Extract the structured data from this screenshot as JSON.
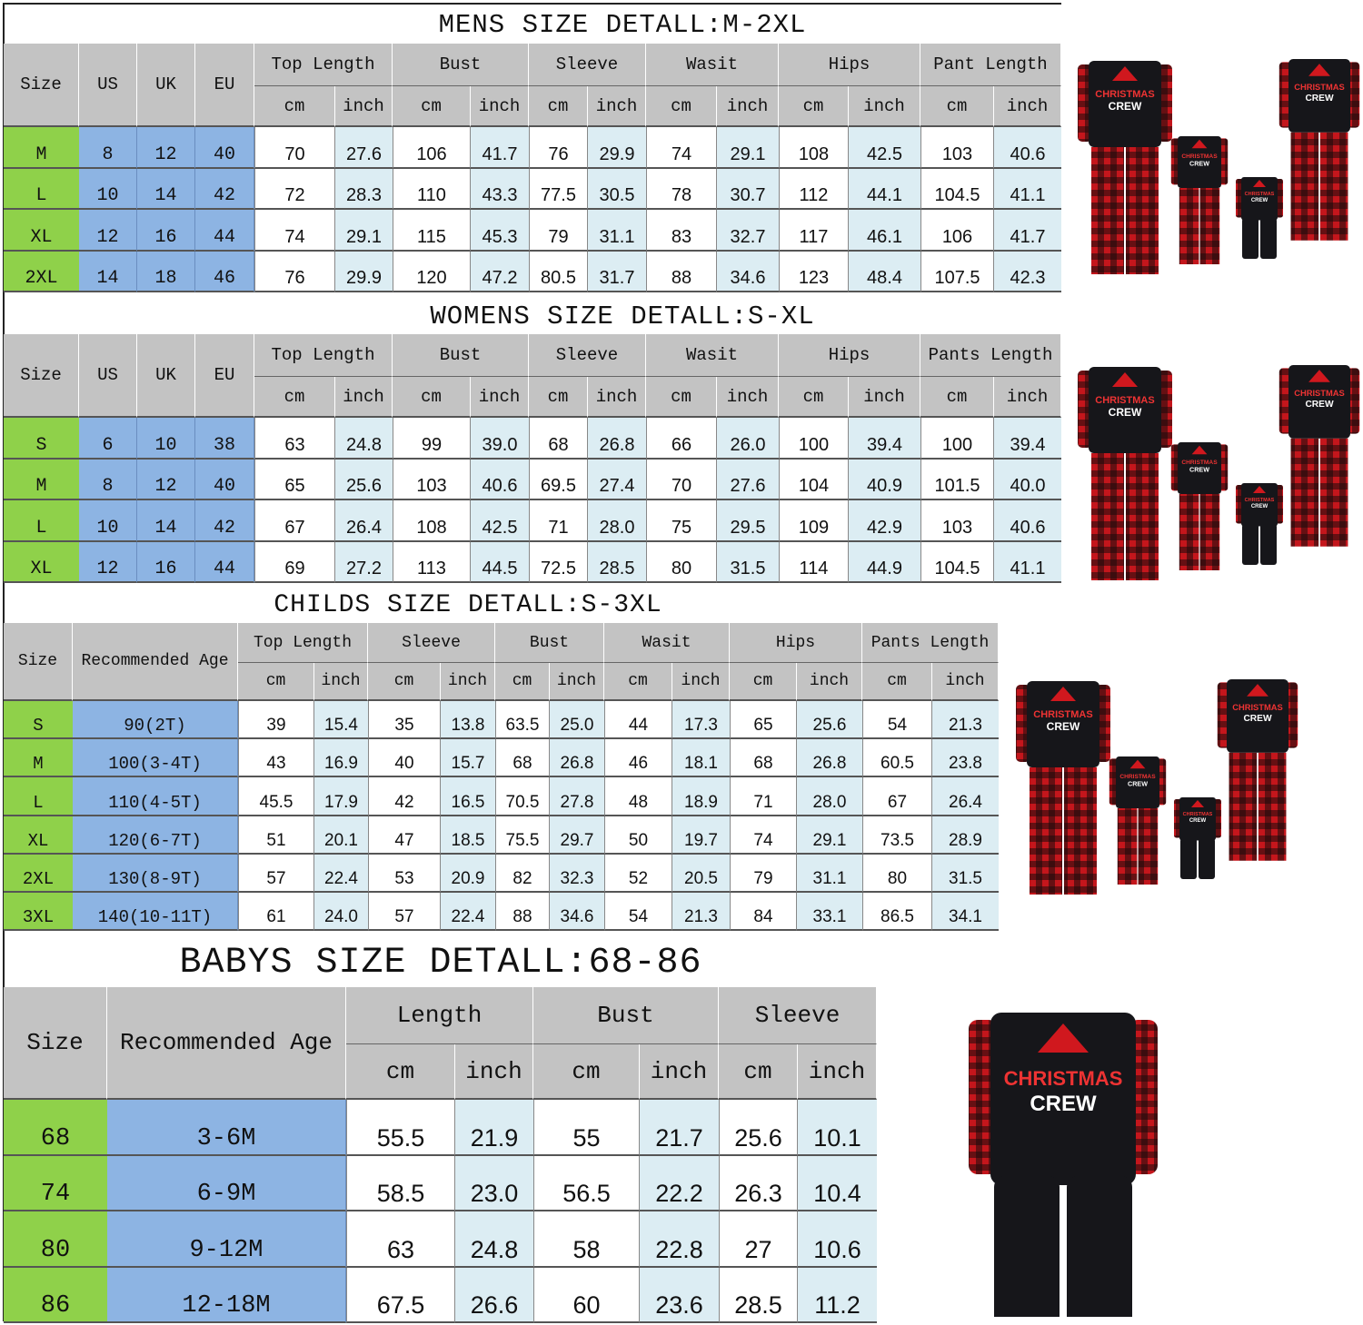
{
  "sections": [
    {
      "title": "MENS SIZE DETALL:M-2XL",
      "left_headers": [
        "Size",
        "US",
        "UK",
        "EU"
      ],
      "groups": [
        {
          "label": "Top Length",
          "units": [
            "cm",
            "inch"
          ]
        },
        {
          "label": "Bust",
          "units": [
            "cm",
            "inch"
          ]
        },
        {
          "label": "Sleeve",
          "units": [
            "cm",
            "inch"
          ]
        },
        {
          "label": "Wasit",
          "units": [
            "cm",
            "inch"
          ]
        },
        {
          "label": "Hips",
          "units": [
            "cm",
            "inch"
          ]
        },
        {
          "label": "Pant Length",
          "units": [
            "cm",
            "inch"
          ]
        }
      ],
      "rows": [
        [
          "M",
          "8",
          "12",
          "40",
          "70",
          "27.6",
          "106",
          "41.7",
          "76",
          "29.9",
          "74",
          "29.1",
          "108",
          "42.5",
          "103",
          "40.6"
        ],
        [
          "L",
          "10",
          "14",
          "42",
          "72",
          "28.3",
          "110",
          "43.3",
          "77.5",
          "30.5",
          "78",
          "30.7",
          "112",
          "44.1",
          "104.5",
          "41.1"
        ],
        [
          "XL",
          "12",
          "16",
          "44",
          "74",
          "29.1",
          "115",
          "45.3",
          "79",
          "31.1",
          "83",
          "32.7",
          "117",
          "46.1",
          "106",
          "41.7"
        ],
        [
          "2XL",
          "14",
          "18",
          "46",
          "76",
          "29.9",
          "120",
          "47.2",
          "80.5",
          "31.7",
          "88",
          "34.6",
          "123",
          "48.4",
          "107.5",
          "42.3"
        ]
      ]
    },
    {
      "title": "WOMENS SIZE DETALL:S-XL",
      "left_headers": [
        "Size",
        "US",
        "UK",
        "EU"
      ],
      "groups": [
        {
          "label": "Top Length",
          "units": [
            "cm",
            "inch"
          ]
        },
        {
          "label": "Bust",
          "units": [
            "cm",
            "inch"
          ]
        },
        {
          "label": "Sleeve",
          "units": [
            "cm",
            "inch"
          ]
        },
        {
          "label": "Wasit",
          "units": [
            "cm",
            "inch"
          ]
        },
        {
          "label": "Hips",
          "units": [
            "cm",
            "inch"
          ]
        },
        {
          "label": "Pants Length",
          "units": [
            "cm",
            "inch"
          ]
        }
      ],
      "rows": [
        [
          "S",
          "6",
          "10",
          "38",
          "63",
          "24.8",
          "99",
          "39.0",
          "68",
          "26.8",
          "66",
          "26.0",
          "100",
          "39.4",
          "100",
          "39.4"
        ],
        [
          "M",
          "8",
          "12",
          "40",
          "65",
          "25.6",
          "103",
          "40.6",
          "69.5",
          "27.4",
          "70",
          "27.6",
          "104",
          "40.9",
          "101.5",
          "40.0"
        ],
        [
          "L",
          "10",
          "14",
          "42",
          "67",
          "26.4",
          "108",
          "42.5",
          "71",
          "28.0",
          "75",
          "29.5",
          "109",
          "42.9",
          "103",
          "40.6"
        ],
        [
          "XL",
          "12",
          "16",
          "44",
          "69",
          "27.2",
          "113",
          "44.5",
          "72.5",
          "28.5",
          "80",
          "31.5",
          "114",
          "44.9",
          "104.5",
          "41.1"
        ]
      ]
    },
    {
      "title": "CHILDS SIZE DETALL:S-3XL",
      "left_headers": [
        "Size",
        "Recommended Age"
      ],
      "groups": [
        {
          "label": "Top Length",
          "units": [
            "cm",
            "inch"
          ]
        },
        {
          "label": "Sleeve",
          "units": [
            "cm",
            "inch"
          ]
        },
        {
          "label": "Bust",
          "units": [
            "cm",
            "inch"
          ]
        },
        {
          "label": "Wasit",
          "units": [
            "cm",
            "inch"
          ]
        },
        {
          "label": "Hips",
          "units": [
            "cm",
            "inch"
          ]
        },
        {
          "label": "Pants Length",
          "units": [
            "cm",
            "inch"
          ]
        }
      ],
      "rows": [
        [
          "S",
          "90(2T)",
          "39",
          "15.4",
          "35",
          "13.8",
          "63.5",
          "25.0",
          "44",
          "17.3",
          "65",
          "25.6",
          "54",
          "21.3"
        ],
        [
          "M",
          "100(3-4T)",
          "43",
          "16.9",
          "40",
          "15.7",
          "68",
          "26.8",
          "46",
          "18.1",
          "68",
          "26.8",
          "60.5",
          "23.8"
        ],
        [
          "L",
          "110(4-5T)",
          "45.5",
          "17.9",
          "42",
          "16.5",
          "70.5",
          "27.8",
          "48",
          "18.9",
          "71",
          "28.0",
          "67",
          "26.4"
        ],
        [
          "XL",
          "120(6-7T)",
          "51",
          "20.1",
          "47",
          "18.5",
          "75.5",
          "29.7",
          "50",
          "19.7",
          "74",
          "29.1",
          "73.5",
          "28.9"
        ],
        [
          "2XL",
          "130(8-9T)",
          "57",
          "22.4",
          "53",
          "20.9",
          "82",
          "32.3",
          "52",
          "20.5",
          "79",
          "31.1",
          "80",
          "31.5"
        ],
        [
          "3XL",
          "140(10-11T)",
          "61",
          "24.0",
          "57",
          "22.4",
          "88",
          "34.6",
          "54",
          "21.3",
          "84",
          "33.1",
          "86.5",
          "34.1"
        ]
      ]
    },
    {
      "title": "BABYS SIZE DETALL:68-86",
      "left_headers": [
        "Size",
        "Recommended Age"
      ],
      "groups": [
        {
          "label": "Length",
          "units": [
            "cm",
            "inch"
          ]
        },
        {
          "label": "Bust",
          "units": [
            "cm",
            "inch"
          ]
        },
        {
          "label": "Sleeve",
          "units": [
            "cm",
            "inch"
          ]
        }
      ],
      "rows": [
        [
          "68",
          "3-6M",
          "55.5",
          "21.9",
          "55",
          "21.7",
          "25.6",
          "10.1"
        ],
        [
          "74",
          "6-9M",
          "58.5",
          "23.0",
          "56.5",
          "22.2",
          "26.3",
          "10.4"
        ],
        [
          "80",
          "9-12M",
          "63",
          "24.8",
          "58",
          "22.8",
          "27",
          "10.6"
        ],
        [
          "86",
          "12-18M",
          "67.5",
          "26.6",
          "60",
          "23.6",
          "28.5",
          "11.2"
        ]
      ]
    }
  ],
  "product_images": {
    "shirt_print": "CHRISTMAS CREW",
    "colors": {
      "shirt": "#16161a",
      "plaid_red": "#c4161c",
      "plaid_dark": "#1a0a0a",
      "hat": "#d0181e"
    }
  },
  "colors": {
    "header": "#c3c3c3",
    "size_column": "#8fd14a",
    "region_columns": "#8db4e3",
    "inch_cells": "#dcedf3"
  }
}
